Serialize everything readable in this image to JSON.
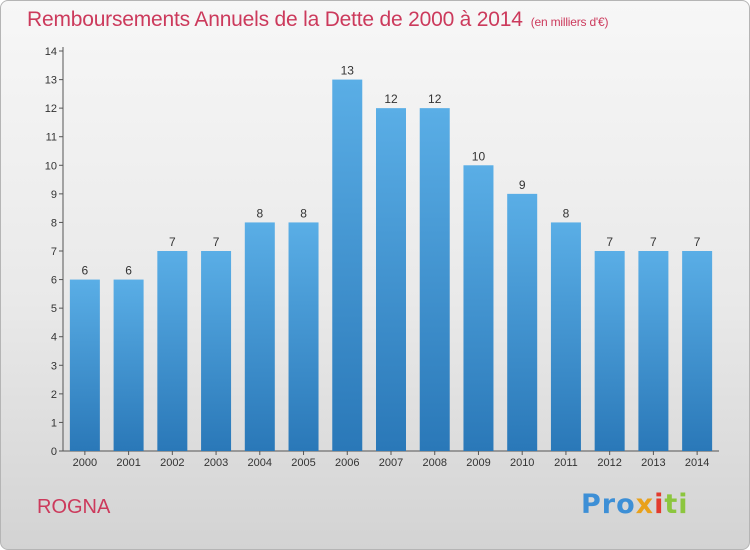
{
  "header": {
    "title": "Remboursements Annuels de la Dette de 2000 à 2014",
    "unit": "(en milliers d'€)"
  },
  "footer": {
    "commune": "ROGNA",
    "logo_parts": [
      "Pro",
      "x",
      "i",
      "ti"
    ]
  },
  "colors": {
    "title": "#cc3a5c",
    "bar_top": "#5aaee6",
    "bar_bottom": "#2a78b8"
  },
  "chart_data": {
    "type": "bar",
    "title": "Remboursements Annuels de la Dette de 2000 à 2014",
    "categories": [
      "2000",
      "2001",
      "2002",
      "2003",
      "2004",
      "2005",
      "2006",
      "2007",
      "2008",
      "2009",
      "2010",
      "2011",
      "2012",
      "2013",
      "2014"
    ],
    "values": [
      6,
      6,
      7,
      7,
      8,
      8,
      13,
      12,
      12,
      10,
      9,
      8,
      7,
      7,
      7
    ],
    "ylim": [
      0,
      14
    ],
    "yticks": [
      0,
      1,
      2,
      3,
      4,
      5,
      6,
      7,
      8,
      9,
      10,
      11,
      12,
      13,
      14
    ],
    "grid": false,
    "data_labels": true
  }
}
